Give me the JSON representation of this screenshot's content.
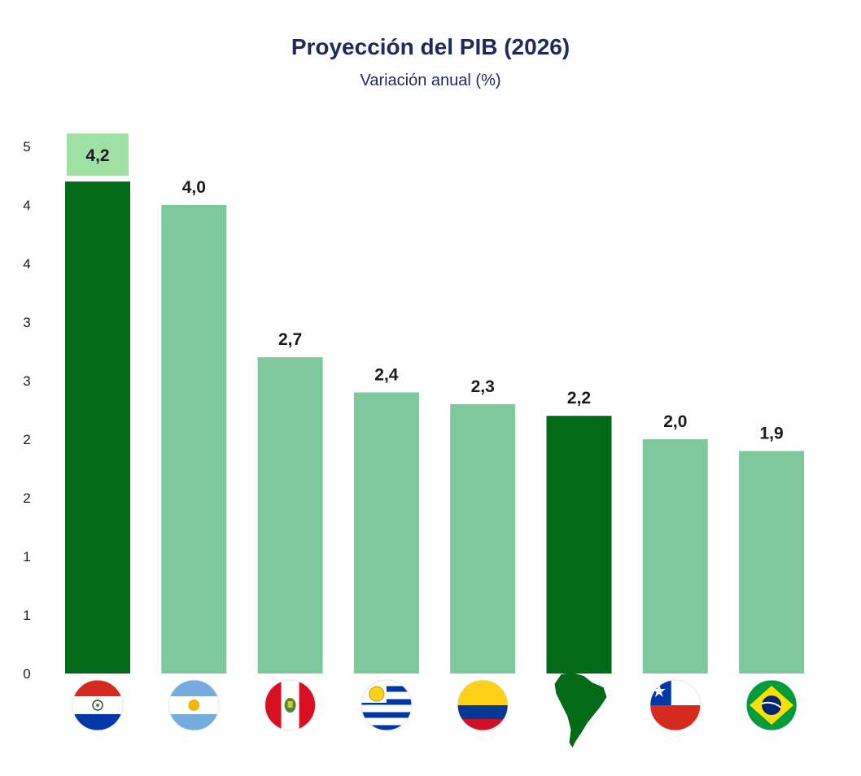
{
  "chart_data": {
    "type": "bar",
    "title": "Proyección del PIB (2026)",
    "subtitle": "Variación anual (%)",
    "xlabel": "",
    "ylabel": "",
    "ylim": [
      0,
      4.5
    ],
    "y_tick_labels": [
      "0",
      "1",
      "1",
      "2",
      "2",
      "3",
      "3",
      "4",
      "4",
      "5"
    ],
    "categories": [
      "Paraguay",
      "Argentina",
      "Perú",
      "Uruguay",
      "Colombia",
      "América del Sur",
      "Chile",
      "Brasil"
    ],
    "icons": [
      "paraguay-flag-icon",
      "argentina-flag-icon",
      "peru-flag-icon",
      "uruguay-flag-icon",
      "colombia-flag-icon",
      "south-america-map-icon",
      "chile-flag-icon",
      "brazil-flag-icon"
    ],
    "values": [
      4.2,
      4.0,
      2.7,
      2.4,
      2.3,
      2.2,
      2.0,
      1.9
    ],
    "value_labels": [
      "4,2",
      "4,0",
      "2,7",
      "2,4",
      "2,3",
      "2,2",
      "2,0",
      "1,9"
    ],
    "highlight": [
      true,
      false,
      false,
      false,
      false,
      true,
      false,
      false
    ],
    "colors": {
      "highlight": "#036a17",
      "normal": "#7fc79d",
      "label_box": "#9fe0a5",
      "title": "#1f2a5c"
    }
  }
}
